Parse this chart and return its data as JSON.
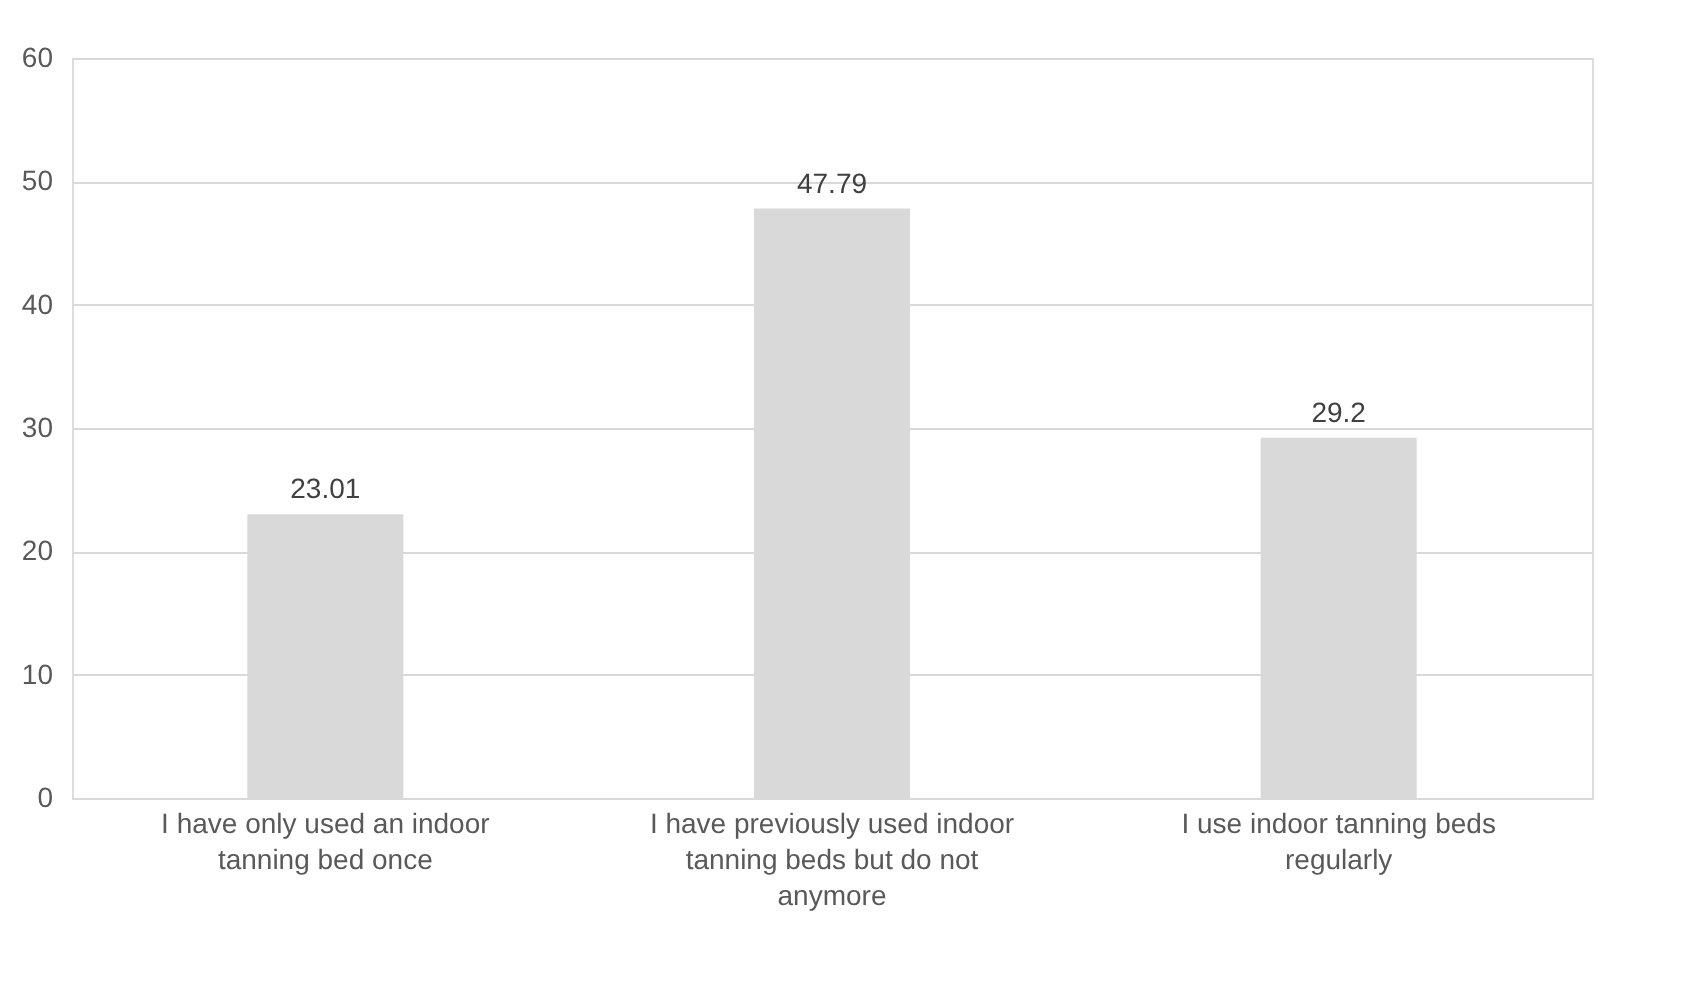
{
  "chart_data": {
    "type": "bar",
    "categories": [
      "I have only used an indoor tanning bed once",
      "I have previously used indoor tanning beds but do not anymore",
      "I use indoor tanning beds regularly"
    ],
    "values": [
      23.01,
      47.79,
      29.2
    ],
    "color": "#d9d9d9",
    "ylim": [
      0,
      60
    ],
    "yticks": [
      0,
      10,
      20,
      30,
      40,
      50,
      60
    ],
    "grid": "y",
    "data_labels": true
  }
}
